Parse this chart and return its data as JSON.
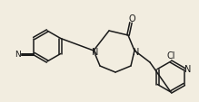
{
  "background_color": "#f2ede0",
  "line_color": "#1a1a1a",
  "line_width": 1.1,
  "figsize": [
    2.19,
    1.14
  ],
  "dpi": 100,
  "xlim": [
    0,
    219
  ],
  "ylim": [
    0,
    114
  ]
}
